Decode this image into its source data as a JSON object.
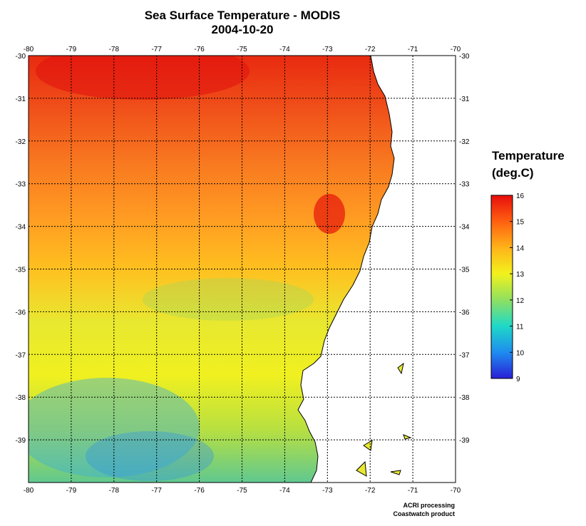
{
  "title": {
    "line1": "Sea Surface Temperature - MODIS",
    "line2": "2004-10-20"
  },
  "axes": {
    "lon_ticks": [
      "-80",
      "-79",
      "-78",
      "-77",
      "-76",
      "-75",
      "-74",
      "-73",
      "-72",
      "-71",
      "-70"
    ],
    "lat_ticks": [
      "-30",
      "-31",
      "-32",
      "-33",
      "-34",
      "-35",
      "-36",
      "-37",
      "-38",
      "-39"
    ],
    "lon_range": [
      -80,
      -70
    ],
    "lat_range": [
      -30,
      -40
    ],
    "grid": "dashed"
  },
  "legend": {
    "title_line1": "Temperature",
    "title_line2": "(deg.C)",
    "ticks": [
      "16",
      "15",
      "14",
      "13",
      "12",
      "11",
      "10",
      "9"
    ],
    "range": [
      9,
      16
    ],
    "colors": [
      "#2a1fd6",
      "#1e8cf0",
      "#1ed9c8",
      "#8fe060",
      "#f2f21c",
      "#ffb319",
      "#ff6010",
      "#e80d0d"
    ]
  },
  "credits": {
    "line1": "ACRI processing",
    "line2": "Coastwatch product"
  },
  "map": {
    "ocean_band_colors": [
      "#e82a10",
      "#f0501a",
      "#f87820",
      "#ff9a22",
      "#ffc020",
      "#e8e830",
      "#f0f020",
      "#b8e040",
      "#60c890"
    ],
    "land_color": "#ffffff",
    "coast_color": "#000000"
  }
}
